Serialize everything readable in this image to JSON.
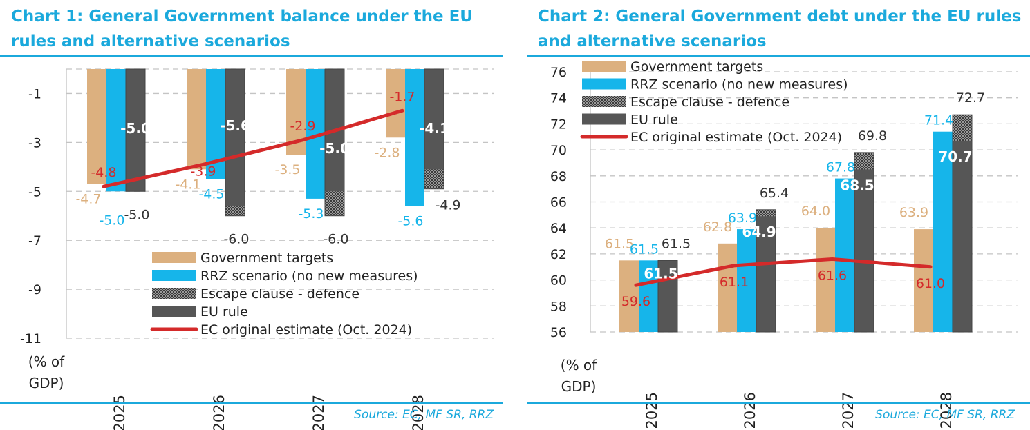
{
  "colors": {
    "government": "#dcb07f",
    "rrz": "#16b5ea",
    "escape": "#8e8e8e",
    "eu": "#565656",
    "ec_line": "#d42a2a",
    "accent": "#1ba9dc"
  },
  "source_text": "Source: EC, MF SR, RRZ",
  "chart_data": [
    {
      "type": "bar",
      "title": "Chart 1: General Government balance under the EU rules and alternative scenarios",
      "unit_label": "(% of GDP)",
      "categories": [
        "2025",
        "2026",
        "2027",
        "2028"
      ],
      "ylim": [
        -11,
        0
      ],
      "yticks": [
        -1,
        -3,
        -5,
        -7,
        -9,
        -11
      ],
      "series": [
        {
          "name": "Government targets",
          "values": [
            -4.7,
            -4.1,
            -3.5,
            -2.8
          ]
        },
        {
          "name": "RRZ scenario (no new measures)",
          "values": [
            -5.0,
            -4.5,
            -5.3,
            -5.6
          ]
        },
        {
          "name": "EU rule",
          "values": [
            -5.0,
            -5.6,
            -5.0,
            -4.1
          ]
        },
        {
          "name": "Escape clause - defence",
          "values": [
            -5.0,
            -6.0,
            -6.0,
            -4.9
          ]
        },
        {
          "name": "EC original estimate (Oct. 2024)",
          "type": "line",
          "values": [
            -4.8,
            -3.9,
            -2.9,
            -1.7
          ]
        }
      ],
      "legend_labels": [
        "Government targets",
        "RRZ scenario (no new measures)",
        "Escape clause - defence",
        "EU rule",
        "EC original estimate (Oct. 2024)"
      ],
      "grid": true,
      "legend_position": "bottom-right"
    },
    {
      "type": "bar",
      "title": "Chart 2: General Government debt under the EU rules and alternative scenarios",
      "unit_label": "(% of GDP)",
      "categories": [
        "2025",
        "2026",
        "2027",
        "2028"
      ],
      "ylim": [
        56,
        76
      ],
      "yticks": [
        76,
        74,
        72,
        70,
        68,
        66,
        64,
        62,
        60,
        58,
        56
      ],
      "series": [
        {
          "name": "Government targets",
          "values": [
            61.5,
            62.8,
            64.0,
            63.9
          ]
        },
        {
          "name": "RRZ scenario (no new measures)",
          "values": [
            61.5,
            63.9,
            67.8,
            71.4
          ]
        },
        {
          "name": "EU rule",
          "values": [
            61.5,
            64.9,
            68.5,
            70.7
          ]
        },
        {
          "name": "Escape clause - defence",
          "values": [
            61.5,
            65.4,
            69.8,
            72.7
          ]
        },
        {
          "name": "EC original estimate (Oct. 2024)",
          "type": "line",
          "values": [
            59.6,
            61.1,
            61.6,
            61.0
          ]
        }
      ],
      "legend_labels": [
        "Government targets",
        "RRZ scenario (no new measures)",
        "Escape clause - defence",
        "EU rule",
        "EC original estimate (Oct. 2024)"
      ],
      "grid": true,
      "legend_position": "top-left"
    }
  ]
}
